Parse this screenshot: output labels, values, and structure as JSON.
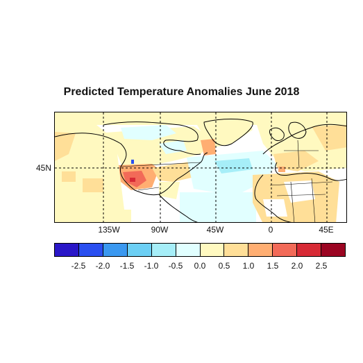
{
  "title": "Predicted Temperature Anomalies June 2018",
  "map": {
    "lon_labels": [
      "135W",
      "90W",
      "45W",
      "0",
      "45E"
    ],
    "lat_labels": [
      "45N"
    ]
  },
  "colorbar": {
    "colors": [
      "#2a17c8",
      "#2a4ff0",
      "#3a98f0",
      "#6ccff4",
      "#a6eef8",
      "#e1ffff",
      "#fff9c0",
      "#ffdf98",
      "#ffae72",
      "#f26a58",
      "#d72a35",
      "#9b0522"
    ],
    "tick_labels": [
      "-2.5",
      "-2.0",
      "-1.5",
      "-1.0",
      "-0.5",
      "0.0",
      "0.5",
      "1.0",
      "1.5",
      "2.0",
      "2.5"
    ]
  }
}
